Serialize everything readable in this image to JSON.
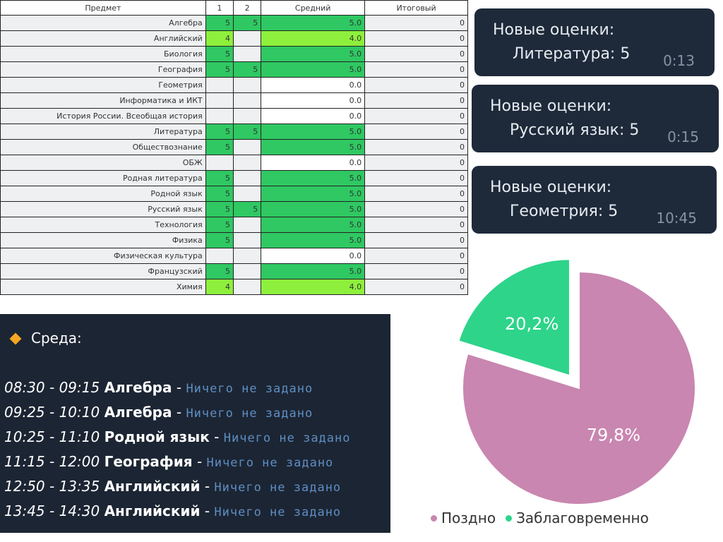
{
  "grades_table": {
    "headers": [
      "Предмет",
      "1",
      "2",
      "Средний",
      "Итоговый"
    ],
    "rows": [
      {
        "subject": "Алгебра",
        "g1": "5",
        "g2": "5",
        "avg": "5.0",
        "final": "0"
      },
      {
        "subject": "Английский",
        "g1": "4",
        "g2": "",
        "avg": "4.0",
        "final": "0"
      },
      {
        "subject": "Биология",
        "g1": "5",
        "g2": "",
        "avg": "5.0",
        "final": "0"
      },
      {
        "subject": "География",
        "g1": "5",
        "g2": "5",
        "avg": "5.0",
        "final": "0"
      },
      {
        "subject": "Геометрия",
        "g1": "",
        "g2": "",
        "avg": "0.0",
        "final": "0"
      },
      {
        "subject": "Информатика и ИКТ",
        "g1": "",
        "g2": "",
        "avg": "0.0",
        "final": "0"
      },
      {
        "subject": "История России. Всеобщая история",
        "g1": "",
        "g2": "",
        "avg": "0.0",
        "final": "0"
      },
      {
        "subject": "Литература",
        "g1": "5",
        "g2": "5",
        "avg": "5.0",
        "final": "0"
      },
      {
        "subject": "Обществознание",
        "g1": "5",
        "g2": "",
        "avg": "5.0",
        "final": "0"
      },
      {
        "subject": "ОБЖ",
        "g1": "",
        "g2": "",
        "avg": "0.0",
        "final": "0"
      },
      {
        "subject": "Родная литература",
        "g1": "5",
        "g2": "",
        "avg": "5.0",
        "final": "0"
      },
      {
        "subject": "Родной язык",
        "g1": "5",
        "g2": "",
        "avg": "5.0",
        "final": "0"
      },
      {
        "subject": "Русский язык",
        "g1": "5",
        "g2": "5",
        "avg": "5.0",
        "final": "0"
      },
      {
        "subject": "Технология",
        "g1": "5",
        "g2": "",
        "avg": "5.0",
        "final": "0"
      },
      {
        "subject": "Физика",
        "g1": "5",
        "g2": "",
        "avg": "5.0",
        "final": "0"
      },
      {
        "subject": "Физическая культура",
        "g1": "",
        "g2": "",
        "avg": "0.0",
        "final": "0"
      },
      {
        "subject": "Французский",
        "g1": "5",
        "g2": "",
        "avg": "5.0",
        "final": "0"
      },
      {
        "subject": "Химия",
        "g1": "4",
        "g2": "",
        "avg": "4.0",
        "final": "0"
      }
    ],
    "colors": {
      "grade5": "#2fc862",
      "grade4": "#8ef03c"
    }
  },
  "notifications": [
    {
      "title": "Новые оценки:",
      "message": "Литература: 5",
      "time": "0:13"
    },
    {
      "title": "Новые оценки:",
      "message": "Русский язык: 5",
      "time": "0:15"
    },
    {
      "title": "Новые оценки:",
      "message": "Геометрия: 5",
      "time": "10:45"
    }
  ],
  "schedule": {
    "icon": "orange-diamond-icon",
    "day": "Среда:",
    "lessons": [
      {
        "time": "08:30 - 09:15",
        "subject": "Алгебра",
        "sep": " - ",
        "homework": "Ничего не задано"
      },
      {
        "time": "09:25 - 10:10",
        "subject": "Алгебра",
        "sep": " - ",
        "homework": "Ничего не задано"
      },
      {
        "time": "10:25 - 11:10",
        "subject": "Родной язык",
        "sep": " - ",
        "homework": "Ничего не задано"
      },
      {
        "time": "11:15 - 12:00",
        "subject": "География",
        "sep": " - ",
        "homework": "Ничего не задано"
      },
      {
        "time": "12:50 - 13:35",
        "subject": "Английский",
        "sep": " - ",
        "homework": "Ничего не задано"
      },
      {
        "time": "13:45 - 14:30",
        "subject": "Английский",
        "sep": " - ",
        "homework": "Ничего не задано"
      }
    ]
  },
  "chart_data": {
    "type": "pie",
    "slices": [
      {
        "name": "Поздно",
        "value": 79.8,
        "label": "79,8%",
        "color": "#c986b0"
      },
      {
        "name": "Заблаговременно",
        "value": 20.2,
        "label": "20,2%",
        "color": "#2ed48a",
        "exploded": true
      }
    ],
    "legend_placement": "bottom"
  }
}
